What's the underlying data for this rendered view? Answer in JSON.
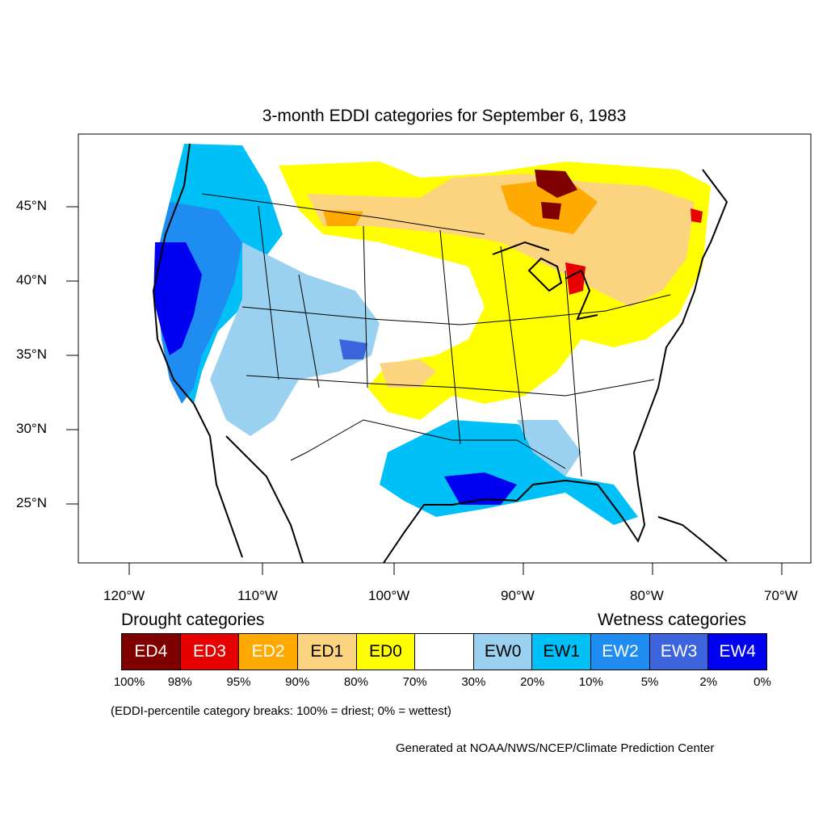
{
  "map": {
    "title": "3-month EDDI categories for September 6, 1983",
    "lat_labels": [
      "45°N",
      "40°N",
      "35°N",
      "30°N",
      "25°N"
    ],
    "lon_labels": [
      "120°W",
      "110°W",
      "100°W",
      "90°W",
      "80°W",
      "70°W"
    ]
  },
  "legend": {
    "drought_heading": "Drought categories",
    "wetness_heading": "Wetness categories",
    "categories": [
      {
        "label": "ED4",
        "color": "#800000",
        "text_color": "#ffffff"
      },
      {
        "label": "ED3",
        "color": "#e60000",
        "text_color": "#ffffff"
      },
      {
        "label": "ED2",
        "color": "#ffaa00",
        "text_color": "#ffffff"
      },
      {
        "label": "ED1",
        "color": "#fcd37f",
        "text_color": "#000000"
      },
      {
        "label": "ED0",
        "color": "#ffff00",
        "text_color": "#000000"
      },
      {
        "label": "",
        "color": "#ffffff",
        "text_color": "#000000"
      },
      {
        "label": "EW0",
        "color": "#9bd1f0",
        "text_color": "#000000"
      },
      {
        "label": "EW1",
        "color": "#00c0f8",
        "text_color": "#000000"
      },
      {
        "label": "EW2",
        "color": "#1e8cf0",
        "text_color": "#ffffff"
      },
      {
        "label": "EW3",
        "color": "#3c64dc",
        "text_color": "#ffffff"
      },
      {
        "label": "EW4",
        "color": "#0000f0",
        "text_color": "#ffffff"
      }
    ],
    "breaks": [
      "100%",
      "98%",
      "95%",
      "90%",
      "80%",
      "70%",
      "30%",
      "20%",
      "10%",
      "5%",
      "2%",
      "0%"
    ],
    "note": "(EDDI-percentile category breaks: 100% = driest; 0% = wettest)"
  },
  "credit": "Generated at NOAA/NWS/NCEP/Climate Prediction Center"
}
